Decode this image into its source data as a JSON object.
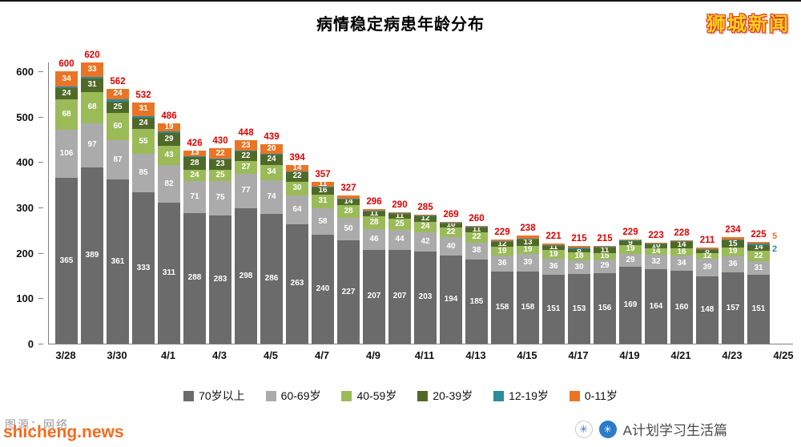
{
  "header": {
    "title": "病情稳定病患年龄分布",
    "brand_logo": "狮城新闻"
  },
  "footer": {
    "source_gray": "图源：网络",
    "watermark_orange": "shicheng.news",
    "brand_right": "A计划学习生活篇"
  },
  "icons": {
    "badge_light_glyph": "✳",
    "badge_blue_glyph": "✳"
  },
  "colors": {
    "total_label": "#e00000",
    "axis": "#808080"
  },
  "chart_data": {
    "type": "bar",
    "stacked": true,
    "title": "病情稳定病患年龄分布",
    "xlabel": "",
    "ylabel": "",
    "ylim": [
      0,
      620
    ],
    "y_ticks": [
      0,
      100,
      200,
      300,
      400,
      500,
      600
    ],
    "grid": false,
    "legend_position": "bottom",
    "x_tick_labels": [
      "3/28",
      "3/30",
      "4/1",
      "4/3",
      "4/5",
      "4/7",
      "4/9",
      "4/11",
      "4/13",
      "4/15",
      "4/17",
      "4/19",
      "4/21",
      "4/23",
      "4/25"
    ],
    "categories": [
      "3/28",
      "3/29",
      "3/30",
      "3/31",
      "4/1",
      "4/2",
      "4/3",
      "4/4",
      "4/5",
      "4/6",
      "4/7",
      "4/8",
      "4/9",
      "4/10",
      "4/11",
      "4/12",
      "4/13",
      "4/14",
      "4/15",
      "4/16",
      "4/17",
      "4/18",
      "4/19",
      "4/20",
      "4/21",
      "4/22",
      "4/23",
      "4/24"
    ],
    "totals": [
      600,
      620,
      562,
      532,
      486,
      426,
      430,
      448,
      439,
      394,
      357,
      327,
      296,
      290,
      285,
      269,
      260,
      229,
      238,
      221,
      215,
      215,
      229,
      223,
      228,
      211,
      234,
      225
    ],
    "series": [
      {
        "name": "70岁以上",
        "color": "#6b6b6b",
        "values": [
          365,
          389,
          361,
          333,
          311,
          288,
          283,
          298,
          286,
          263,
          240,
          227,
          207,
          207,
          203,
          194,
          185,
          158,
          158,
          151,
          153,
          156,
          169,
          164,
          160,
          148,
          157,
          151
        ]
      },
      {
        "name": "60-69岁",
        "color": "#ababab",
        "values": [
          106,
          97,
          87,
          85,
          82,
          71,
          75,
          77,
          74,
          64,
          58,
          50,
          46,
          44,
          42,
          40,
          38,
          36,
          39,
          36,
          30,
          29,
          29,
          32,
          34,
          39,
          36,
          31
        ]
      },
      {
        "name": "40-59岁",
        "color": "#9bbb59",
        "values": [
          68,
          68,
          60,
          55,
          43,
          24,
          25,
          27,
          34,
          30,
          31,
          28,
          28,
          25,
          24,
          22,
          22,
          19,
          19,
          19,
          18,
          15,
          19,
          14,
          16,
          12,
          19,
          22
        ]
      },
      {
        "name": "20-39岁",
        "color": "#4f6a28",
        "values": [
          24,
          31,
          25,
          24,
          29,
          28,
          23,
          22,
          24,
          22,
          16,
          14,
          11,
          11,
          12,
          10,
          11,
          12,
          13,
          11,
          8,
          11,
          9,
          10,
          14,
          8,
          15,
          14
        ]
      },
      {
        "name": "12-19岁",
        "color": "#2e8a9e",
        "label_outside_last": true,
        "values": [
          3,
          2,
          5,
          4,
          2,
          2,
          2,
          1,
          1,
          1,
          1,
          1,
          1,
          1,
          1,
          1,
          1,
          1,
          2,
          1,
          2,
          2,
          1,
          1,
          2,
          2,
          2,
          2
        ]
      },
      {
        "name": "0-11岁",
        "color": "#ea7425",
        "label_outside_last": true,
        "values": [
          34,
          33,
          24,
          31,
          19,
          13,
          22,
          23,
          20,
          14,
          11,
          7,
          3,
          2,
          3,
          2,
          3,
          3,
          7,
          3,
          4,
          2,
          2,
          2,
          2,
          2,
          5,
          5
        ]
      }
    ]
  }
}
